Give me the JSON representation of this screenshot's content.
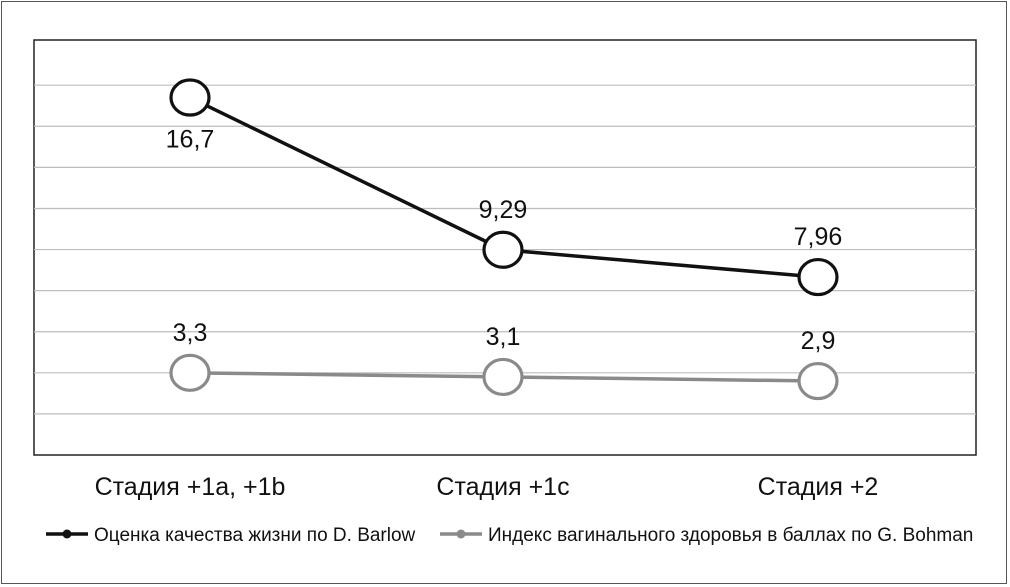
{
  "chart_data": {
    "type": "line",
    "categories": [
      "Стадия +1a, +1b",
      "Стадия +1c",
      "Стадия +2"
    ],
    "series": [
      {
        "name": "Оценка качества жизни по D. Barlow",
        "values": [
          16.7,
          9.29,
          7.96
        ],
        "labels": [
          "16,7",
          "9,29",
          "7,96"
        ],
        "color": "#111111"
      },
      {
        "name": "Индекс вагинального здоровья в баллах по G. Bohman",
        "values": [
          3.3,
          3.1,
          2.9
        ],
        "labels": [
          "3,3",
          "3,1",
          "2,9"
        ],
        "color": "#8a8a8a"
      }
    ],
    "ylim": [
      -0.7,
      19.5
    ],
    "gridlines": [
      1.3,
      3.3,
      5.3,
      7.3,
      9.3,
      11.3,
      13.3,
      15.3,
      17.3
    ],
    "grid": true,
    "legend_position": "bottom",
    "title": "",
    "xlabel": "",
    "ylabel": ""
  }
}
